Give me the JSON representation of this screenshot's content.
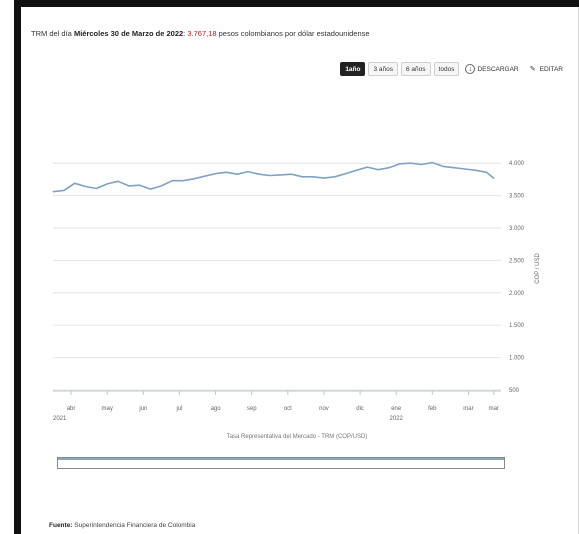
{
  "headline": {
    "prefix": "TRM del día",
    "date": "Miércoles 30 de Marzo de 2022",
    "value": "3.767,18",
    "suffix": "pesos colombianos por dólar estadounidense"
  },
  "toolbar": {
    "ranges": [
      "1año",
      "3 años",
      "6 años",
      "todos"
    ],
    "active_range": "1año",
    "download_label": "DESCARGAR",
    "edit_label": "EDITAR"
  },
  "chart_data": {
    "type": "line",
    "title": "",
    "xlabel": "",
    "ylabel": "COP / USD",
    "series_caption": "Tasa Representativa del Mercado - TRM (COP/USD)",
    "ylim": [
      500,
      4250
    ],
    "yticks": [
      500,
      1000,
      1500,
      2000,
      2500,
      3000,
      3500,
      4000
    ],
    "ytick_labels": [
      "500",
      "1.000",
      "1.500",
      "2.000",
      "2.500",
      "3.000",
      "3.500",
      "4.000"
    ],
    "xlim": [
      0,
      12.4
    ],
    "xticks": [
      0.5,
      1.5,
      2.5,
      3.5,
      4.5,
      5.5,
      6.5,
      7.5,
      8.5,
      9.5,
      10.5,
      11.5,
      12.2
    ],
    "xtick_labels": [
      "abr",
      "may",
      "jun",
      "jul",
      "ago",
      "sep",
      "oct",
      "nov",
      "dic",
      "ene",
      "feb",
      "mar",
      "mar"
    ],
    "year_labels": [
      {
        "x": 0,
        "label": "2021"
      },
      {
        "x": 9.5,
        "label": "2022"
      }
    ],
    "grid": "horizontal",
    "legend": "none",
    "series": [
      {
        "color": "#7fa3c5",
        "x": [
          0,
          0.3,
          0.6,
          0.9,
          1.2,
          1.5,
          1.8,
          2.1,
          2.4,
          2.7,
          3.0,
          3.3,
          3.6,
          3.9,
          4.2,
          4.5,
          4.8,
          5.1,
          5.4,
          5.7,
          6.0,
          6.3,
          6.6,
          6.9,
          7.2,
          7.5,
          7.8,
          8.1,
          8.4,
          8.7,
          9.0,
          9.3,
          9.6,
          9.9,
          10.2,
          10.5,
          10.8,
          11.1,
          11.4,
          11.7,
          12.0,
          12.2
        ],
        "values": [
          3560,
          3580,
          3690,
          3640,
          3610,
          3680,
          3720,
          3650,
          3660,
          3600,
          3650,
          3730,
          3730,
          3760,
          3800,
          3840,
          3860,
          3830,
          3870,
          3830,
          3810,
          3820,
          3830,
          3790,
          3790,
          3770,
          3790,
          3840,
          3890,
          3940,
          3900,
          3930,
          3990,
          4000,
          3980,
          4010,
          3950,
          3930,
          3910,
          3890,
          3860,
          3767
        ]
      }
    ]
  },
  "source": {
    "label": "Fuente:",
    "text": "Superintendencia Financiera de Colombia"
  }
}
